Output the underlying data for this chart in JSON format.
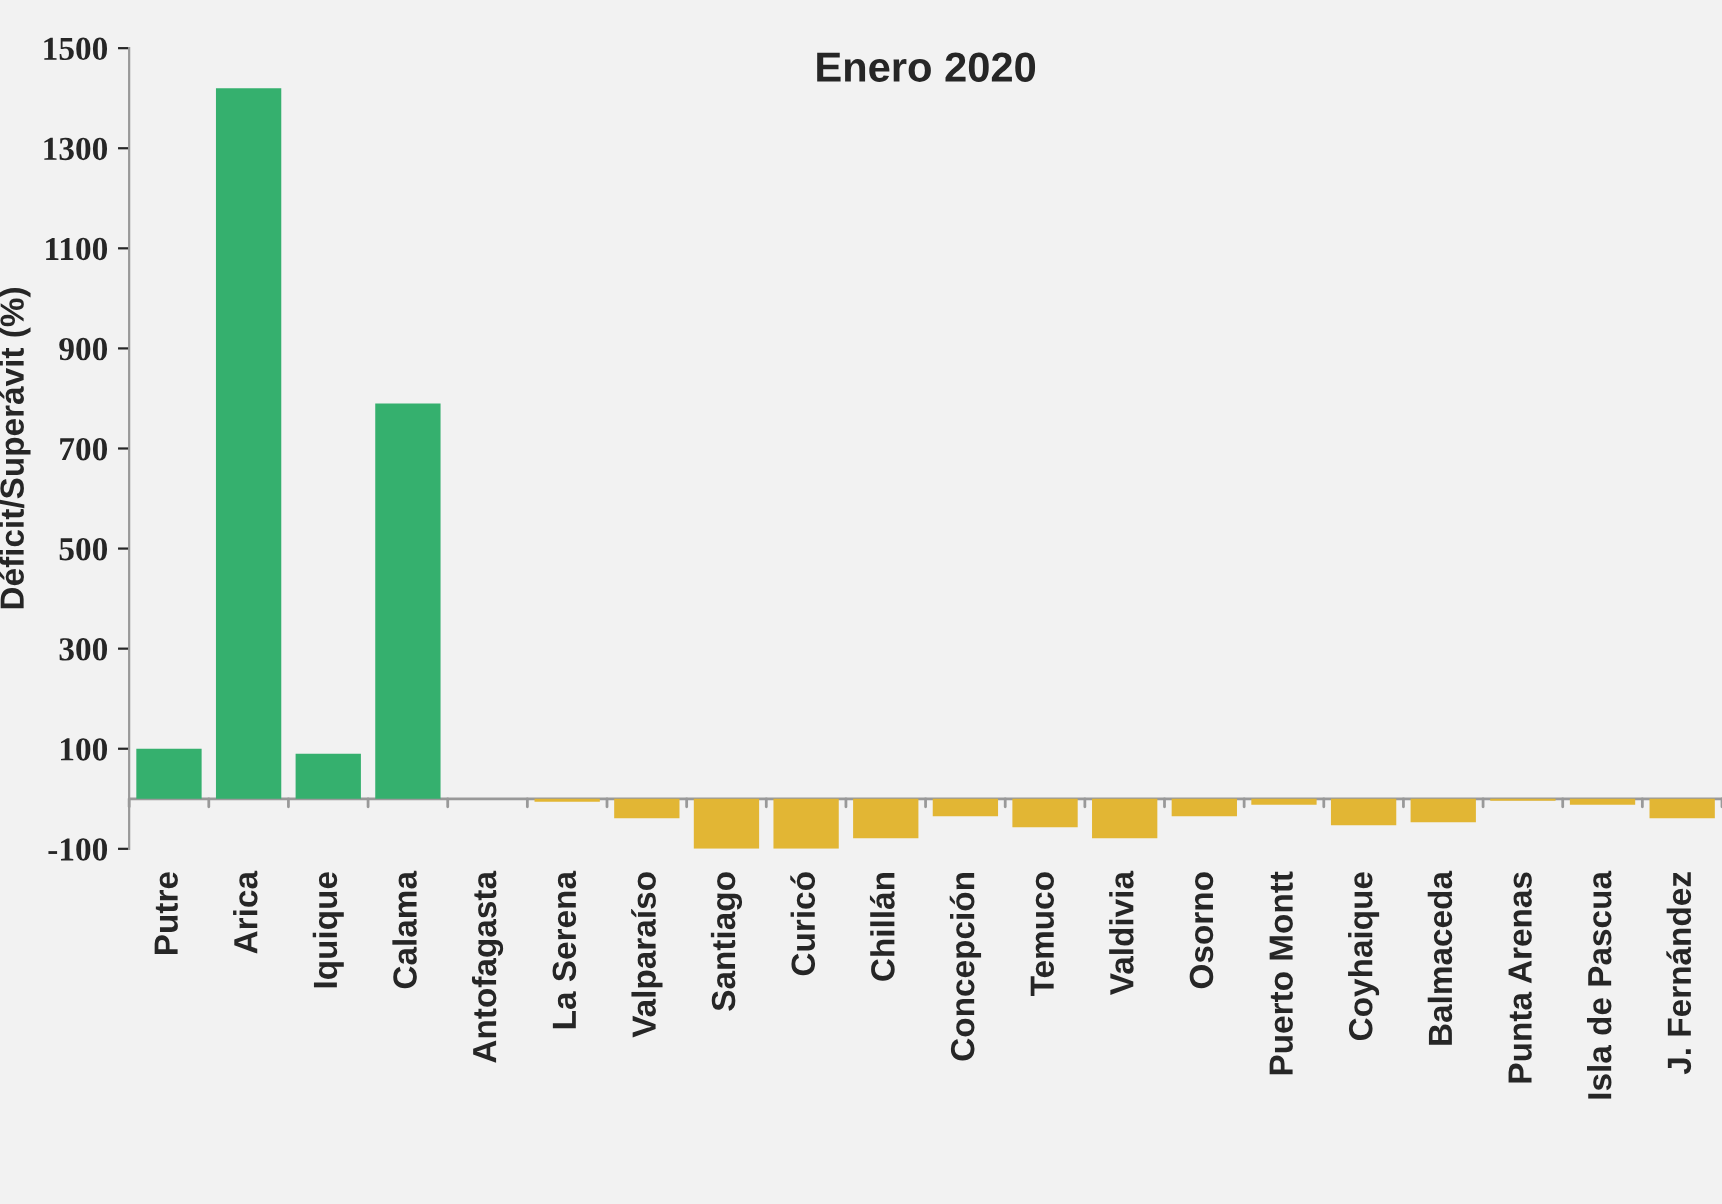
{
  "chart_data": {
    "type": "bar",
    "title": "Enero 2020",
    "ylabel": "Déficit/Superávit (%)",
    "categories": [
      "Putre",
      "Arica",
      "Iquique",
      "Calama",
      "Antofagasta",
      "La Serena",
      "Valparaíso",
      "Santiago",
      "Curicó",
      "Chillán",
      "Concepción",
      "Temuco",
      "Valdivia",
      "Osorno",
      "Puerto Montt",
      "Coyhaique",
      "Balmaceda",
      "Punta Arenas",
      "Isla de Pascua",
      "J. Fernández"
    ],
    "values": [
      100,
      1420,
      90,
      790,
      0,
      -6,
      -39,
      -100,
      -100,
      -79,
      -35,
      -57,
      -79,
      -35,
      -12,
      -53,
      -47,
      -4,
      -12,
      -39
    ],
    "colors": [
      "#35b06e",
      "#35b06e",
      "#35b06e",
      "#35b06e",
      "#35b06e",
      "#e2b634",
      "#e2b634",
      "#e2b634",
      "#e2b634",
      "#e2b634",
      "#e2b634",
      "#e2b634",
      "#e2b634",
      "#e2b634",
      "#e2b634",
      "#e2b634",
      "#e2b634",
      "#e2b634",
      "#e2b634",
      "#e2b634"
    ],
    "ylim": [
      -100,
      1500
    ],
    "yticks": [
      -100,
      100,
      300,
      500,
      700,
      900,
      1100,
      1300,
      1500
    ],
    "grid": false,
    "legend": false
  }
}
